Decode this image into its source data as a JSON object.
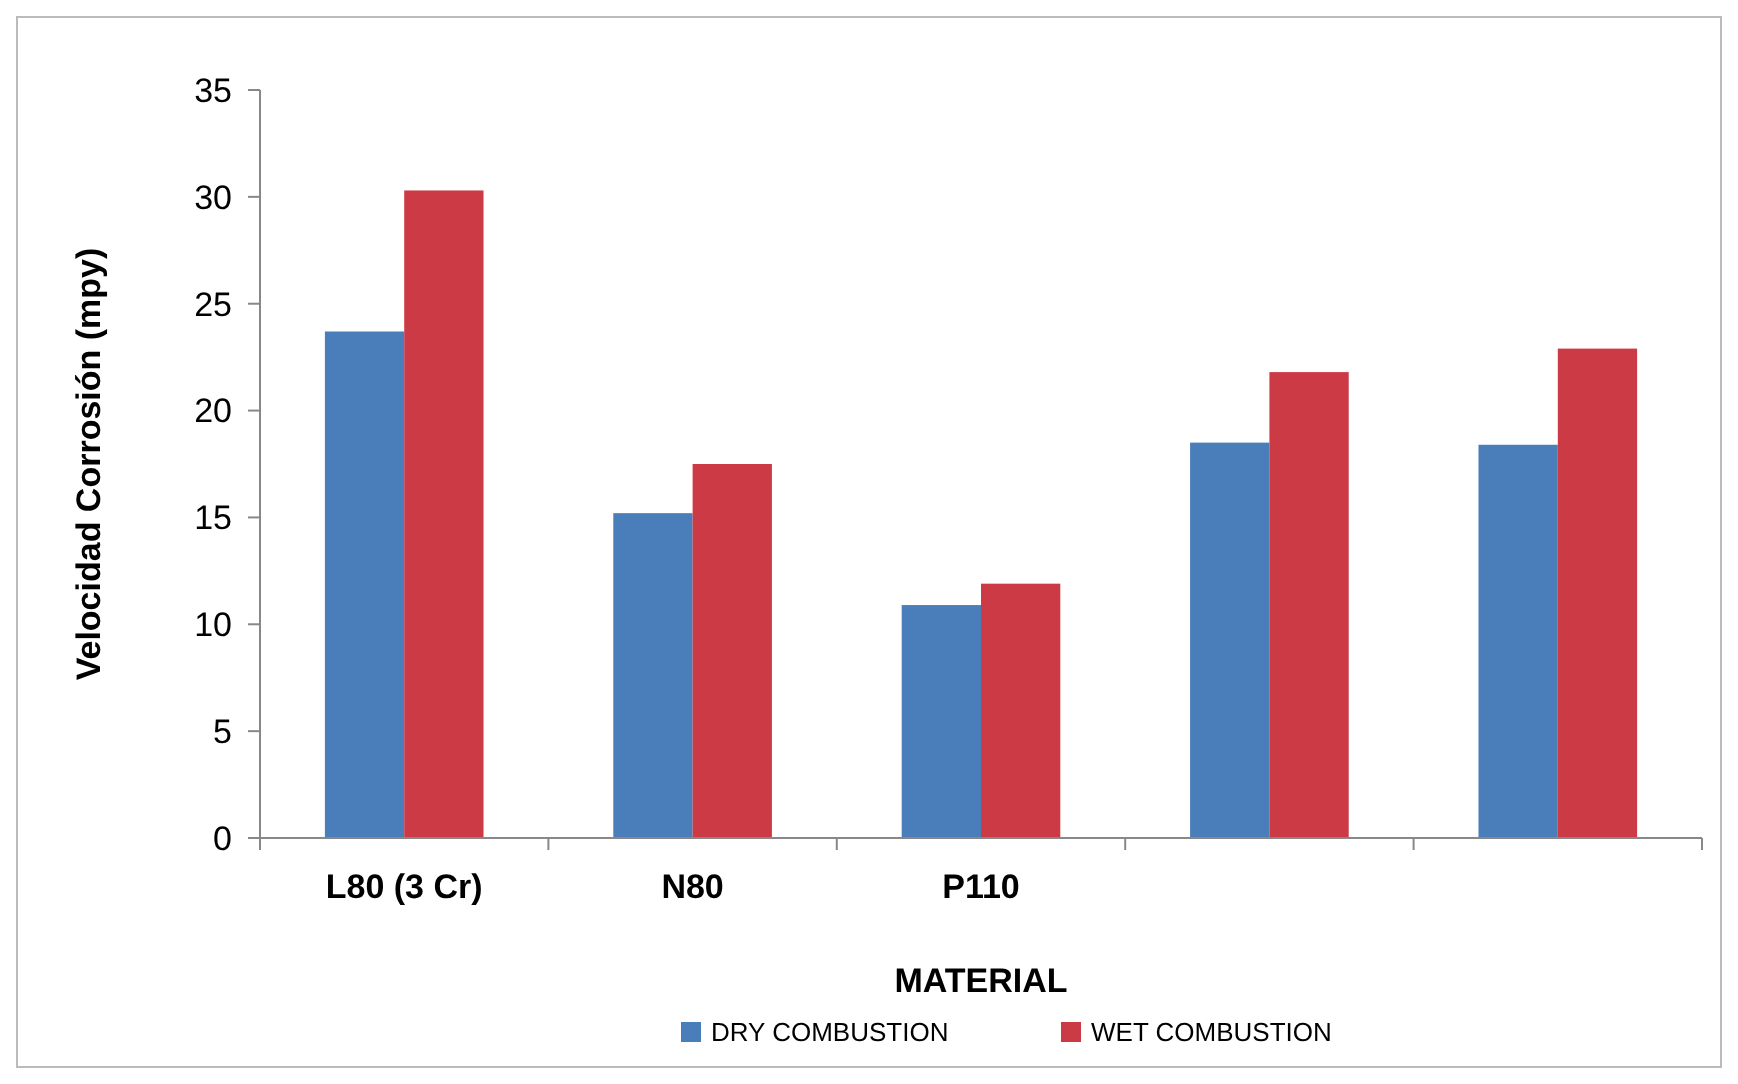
{
  "chart_data": {
    "type": "bar",
    "xlabel": "MATERIAL",
    "ylabel": "Velocidad Corrosión (mpy)",
    "categories": [
      "L80 (3 Cr)",
      "N80",
      "P110",
      null,
      null
    ],
    "series": [
      {
        "name": "DRY COMBUSTION",
        "color": "#4a7ebb",
        "values": [
          23.7,
          15.2,
          10.9,
          18.5,
          18.4
        ]
      },
      {
        "name": "WET COMBUSTION",
        "color": "#cb3a45",
        "values": [
          30.3,
          17.5,
          11.9,
          21.8,
          22.9
        ]
      }
    ],
    "ylim": [
      0,
      35
    ],
    "yticks": [
      0,
      5,
      10,
      15,
      20,
      25,
      30,
      35
    ],
    "grid": false,
    "legend": "bottom"
  }
}
